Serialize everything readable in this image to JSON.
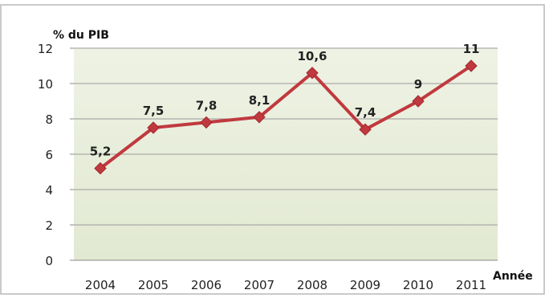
{
  "chart_data": {
    "type": "line",
    "title": "",
    "xlabel": "Année",
    "ylabel": "% du PIB",
    "categories": [
      "2004",
      "2005",
      "2006",
      "2007",
      "2008",
      "2009",
      "2010",
      "2011"
    ],
    "series": [
      {
        "values": [
          5.2,
          7.5,
          7.8,
          8.1,
          10.6,
          7.4,
          9,
          11
        ],
        "labels": [
          "5,2",
          "7,5",
          "7,8",
          "8,1",
          "10,6",
          "7,4",
          "9",
          "11"
        ],
        "color": "#c0393e"
      }
    ],
    "ylim": [
      0,
      12
    ],
    "yticks": [
      "0",
      "2",
      "4",
      "6",
      "8",
      "10",
      "12"
    ],
    "grid": true,
    "legend": "none",
    "plot_background": "#e6ecd8"
  }
}
